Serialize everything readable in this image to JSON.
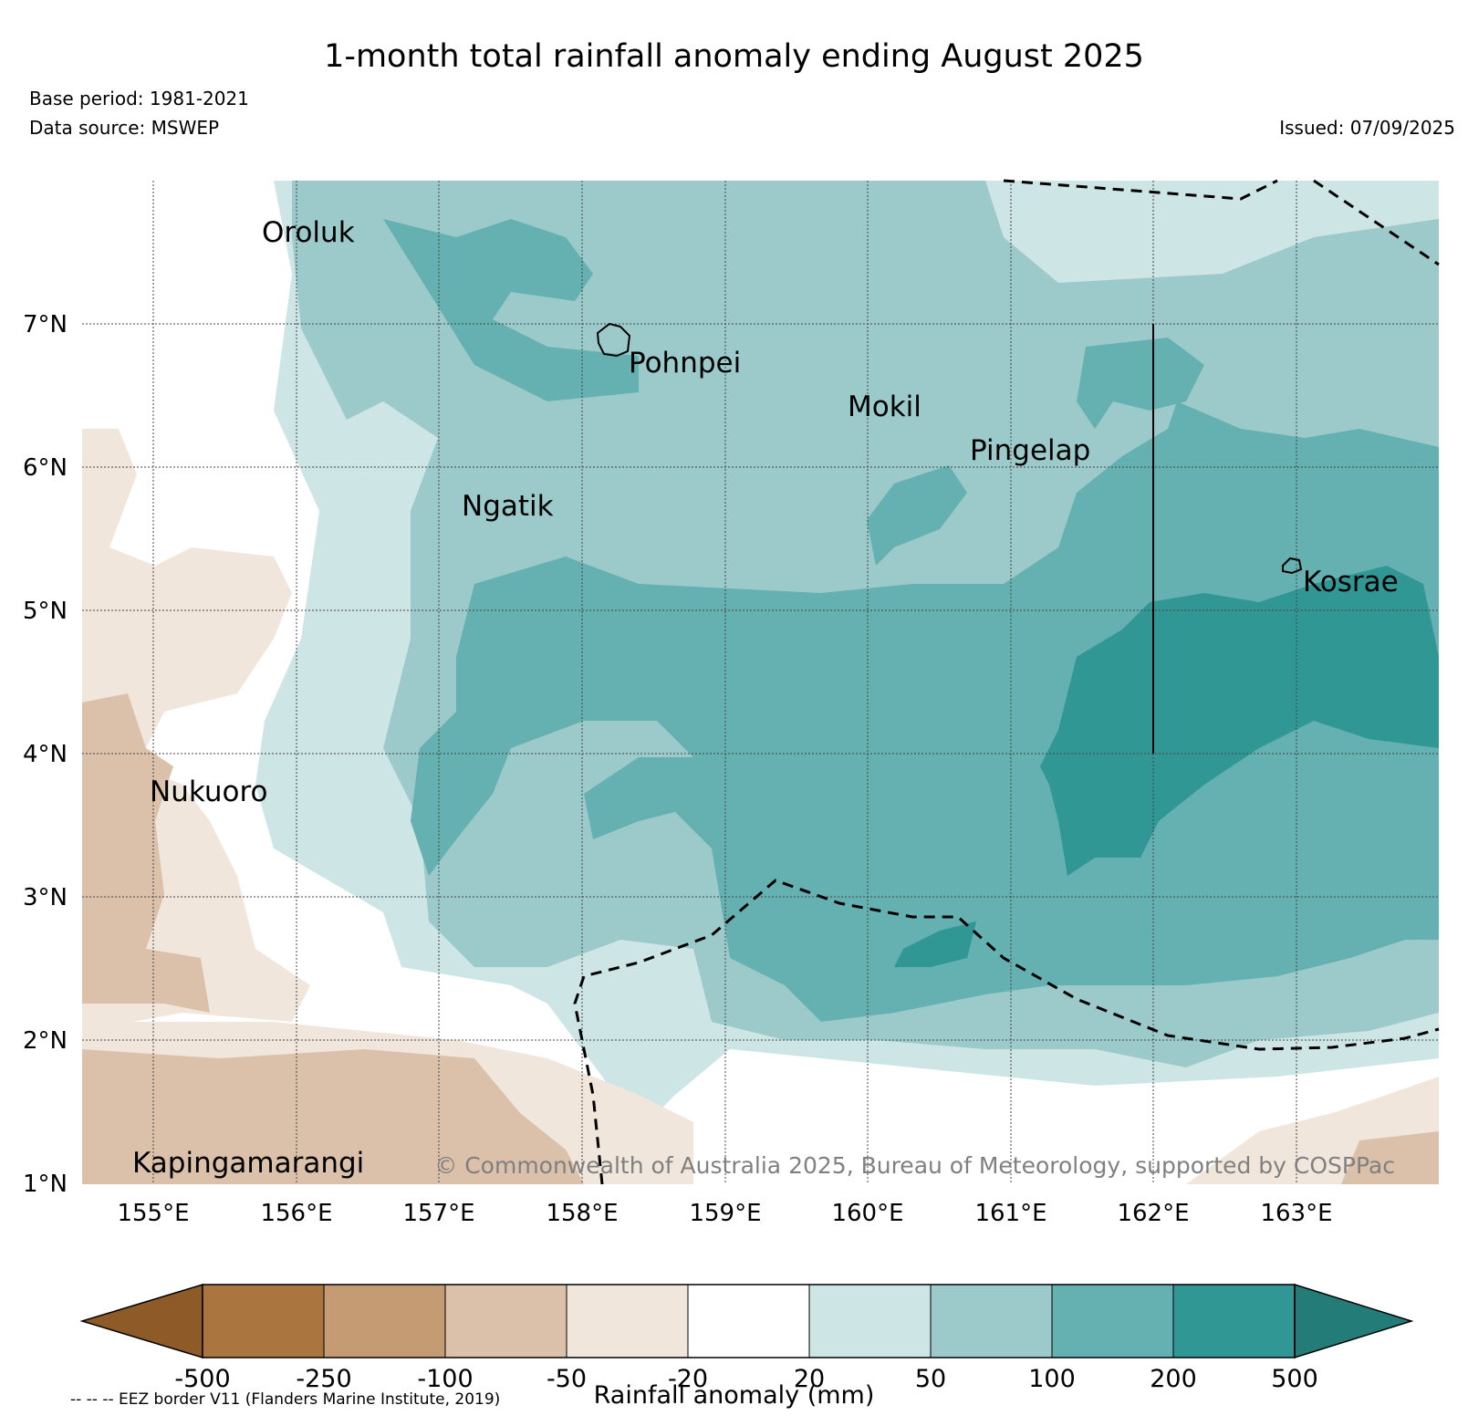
{
  "header": {
    "title": "1-month total rainfall anomaly ending August 2025",
    "base_period": "Base period: 1981-2021",
    "data_source": "Data source: MSWEP",
    "issued": "Issued: 07/09/2025"
  },
  "map": {
    "region": "Federated States of Micronesia (Pohnpei and Kosrae)",
    "longitude_ticks": [
      "155°E",
      "156°E",
      "157°E",
      "158°E",
      "159°E",
      "160°E",
      "161°E",
      "162°E",
      "163°E"
    ],
    "latitude_ticks": [
      "7°N",
      "6°N",
      "5°N",
      "4°N",
      "3°N",
      "2°N",
      "1°N"
    ],
    "lon_range": [
      154.5,
      164.0
    ],
    "lat_range": [
      1.0,
      8.0
    ],
    "places": [
      {
        "name": "Oroluk"
      },
      {
        "name": "Pohnpei"
      },
      {
        "name": "Mokil"
      },
      {
        "name": "Pingelap"
      },
      {
        "name": "Ngatik"
      },
      {
        "name": "Kosrae"
      },
      {
        "name": "Nukuoro"
      },
      {
        "name": "Kapingamarangi"
      }
    ],
    "copyright": "© Commonwealth of Australia 2025, Bureau of Meteorology, supported by COSPPac"
  },
  "colorbar": {
    "label": "Rainfall anomaly (mm)",
    "ticks": [
      "-500",
      "-250",
      "-100",
      "-50",
      "-20",
      "20",
      "50",
      "100",
      "200",
      "500"
    ],
    "colors": [
      "#8e5a28",
      "#ab7540",
      "#c49b73",
      "#dbc1a9",
      "#f0e6dc",
      "#ffffff",
      "#cde5e4",
      "#9ccaca",
      "#65b0b0",
      "#319795",
      "#247c79"
    ]
  },
  "footnote": "-- -- -- EEZ border V11 (Flanders Marine Institute, 2019)"
}
